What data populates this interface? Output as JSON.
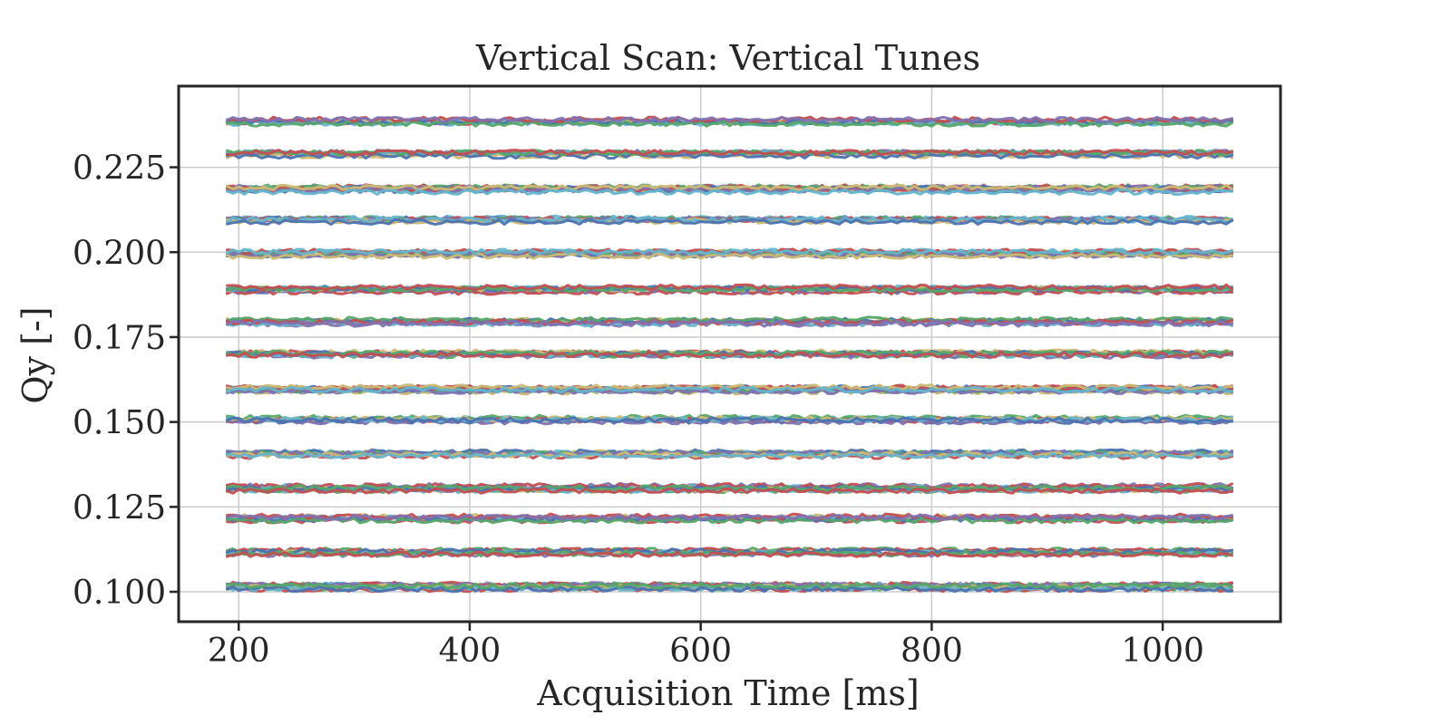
{
  "chart_data": {
    "type": "line",
    "title": "Vertical Scan: Vertical Tunes",
    "xlabel": "Acquisition Time [ms]",
    "ylabel": "Qy [-]",
    "xlim": [
      148,
      1102
    ],
    "ylim": [
      0.0912,
      0.2489
    ],
    "xticks": [
      200,
      400,
      600,
      800,
      1000
    ],
    "xtick_labels": [
      "200",
      "400",
      "600",
      "800",
      "1000"
    ],
    "yticks": [
      0.1,
      0.125,
      0.15,
      0.175,
      0.2,
      0.225
    ],
    "ytick_labels": [
      "0.100",
      "0.125",
      "0.150",
      "0.175",
      "0.200",
      "0.225"
    ],
    "grid": true,
    "legend": "none",
    "x_start": 190,
    "x_end": 1060,
    "x_step": 5,
    "colors": [
      "#4c72b0",
      "#55a868",
      "#c44e52",
      "#8172b2",
      "#ccb974",
      "#64b5cd"
    ],
    "series": [
      {
        "level": 0.1015,
        "count": 14
      },
      {
        "level": 0.1115,
        "count": 8
      },
      {
        "level": 0.1215,
        "count": 8
      },
      {
        "level": 0.1305,
        "count": 12
      },
      {
        "level": 0.1405,
        "count": 8
      },
      {
        "level": 0.1505,
        "count": 8
      },
      {
        "level": 0.1595,
        "count": 12
      },
      {
        "level": 0.17,
        "count": 8
      },
      {
        "level": 0.1795,
        "count": 8
      },
      {
        "level": 0.189,
        "count": 12
      },
      {
        "level": 0.1995,
        "count": 8
      },
      {
        "level": 0.2095,
        "count": 8
      },
      {
        "level": 0.2185,
        "count": 12
      },
      {
        "level": 0.229,
        "count": 8
      },
      {
        "level": 0.2385,
        "count": 8
      }
    ],
    "noise_amplitude": 0.0007
  }
}
